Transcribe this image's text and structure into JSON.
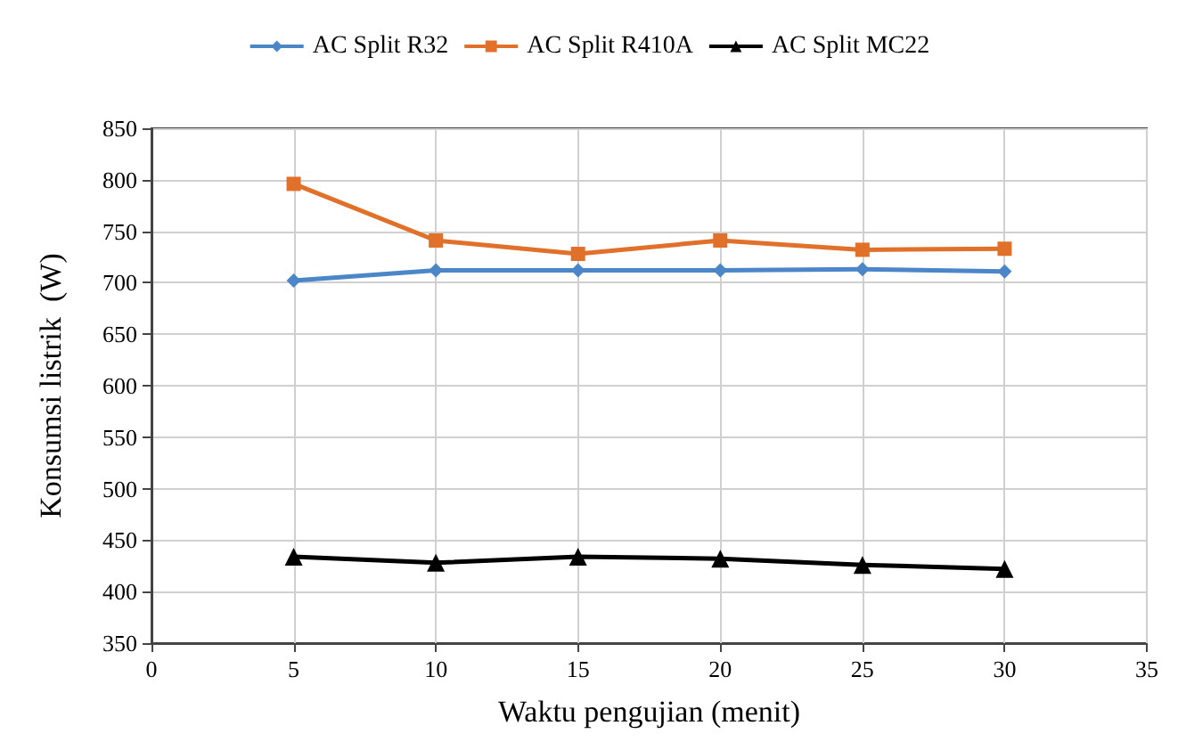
{
  "chart_data": {
    "type": "line",
    "xlabel": "Waktu pengujian (menit)",
    "ylabel": "Konsumsi listrik  (W)",
    "x": [
      5,
      10,
      15,
      20,
      25,
      30
    ],
    "series": [
      {
        "name": "AC Split R32",
        "color": "#4a86c8",
        "marker": "diamond",
        "values": [
          702,
          712,
          712,
          712,
          713,
          711
        ]
      },
      {
        "name": "AC Split R410A",
        "color": "#e0702a",
        "marker": "square",
        "values": [
          796,
          741,
          728,
          741,
          732,
          733
        ]
      },
      {
        "name": "AC Split MC22",
        "color": "#000000",
        "marker": "triangle",
        "values": [
          434,
          428,
          434,
          432,
          426,
          422
        ]
      }
    ],
    "xlim": [
      0,
      35
    ],
    "xticks": [
      0,
      5,
      10,
      15,
      20,
      25,
      30,
      35
    ],
    "ylim": [
      350,
      850
    ],
    "yticks": [
      350,
      400,
      450,
      500,
      550,
      600,
      650,
      700,
      750,
      800,
      850
    ],
    "grid": true,
    "legend": "top",
    "line_style": "solid"
  }
}
